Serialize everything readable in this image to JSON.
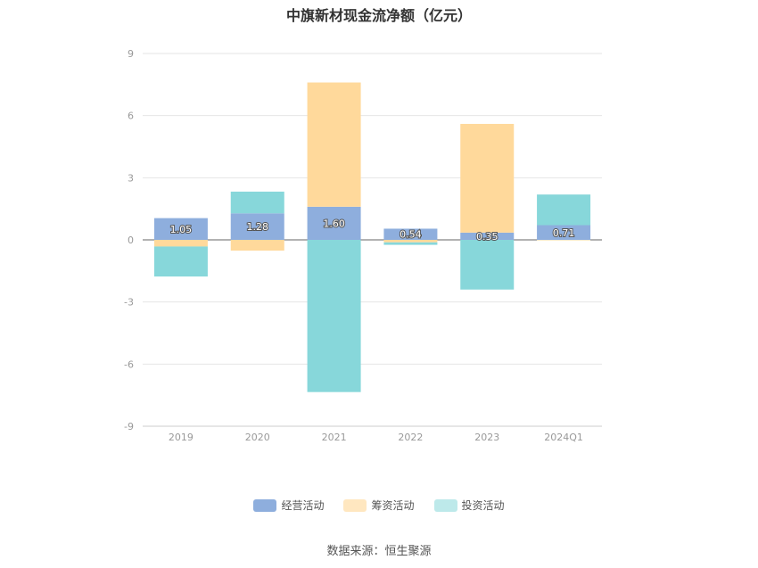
{
  "chart_data": {
    "type": "bar",
    "stacked": true,
    "title": "中旗新材现金流净额（亿元）",
    "categories": [
      "2019",
      "2020",
      "2021",
      "2022",
      "2023",
      "2024Q1"
    ],
    "ylim": [
      -9,
      9
    ],
    "yticks": [
      9,
      6,
      3,
      0,
      -3,
      -6,
      -9
    ],
    "grid": true,
    "legend_position": "bottom",
    "series": [
      {
        "name": "经营活动",
        "color": "#8eaedd",
        "values": [
          1.05,
          1.28,
          1.6,
          0.54,
          0.35,
          0.71
        ]
      },
      {
        "name": "筹资活动",
        "color": "#ffd99b",
        "values": [
          -0.32,
          -0.52,
          6.0,
          -0.12,
          5.25,
          -0.02
        ]
      },
      {
        "name": "投资活动",
        "color": "#87d7da",
        "values": [
          -1.45,
          1.05,
          -7.35,
          -0.12,
          -2.4,
          1.48
        ]
      }
    ],
    "data_labels": [
      "1.05",
      "1.28",
      "1.60",
      "0.54",
      "0.35",
      "0.71"
    ]
  },
  "legend": {
    "items": [
      {
        "label": "经营活动",
        "color": "#8eaedd"
      },
      {
        "label": "筹资活动",
        "color": "#ffe7c0"
      },
      {
        "label": "投资活动",
        "color": "#bde9ea"
      }
    ]
  },
  "source": "数据来源：恒生聚源"
}
